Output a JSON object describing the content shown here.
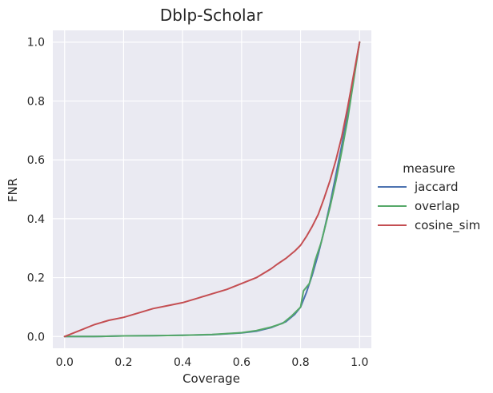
{
  "chart_data": {
    "type": "line",
    "title": "Dblp-Scholar",
    "xlabel": "Coverage",
    "ylabel": "FNR",
    "xlim": [
      -0.04,
      1.04
    ],
    "ylim": [
      -0.04,
      1.04
    ],
    "xticks": [
      "0.0",
      "0.2",
      "0.4",
      "0.6",
      "0.8",
      "1.0"
    ],
    "yticks": [
      "0.0",
      "0.2",
      "0.4",
      "0.6",
      "0.8",
      "1.0"
    ],
    "grid": true,
    "legend": {
      "title": "measure",
      "placement": "right-outside"
    },
    "colors": {
      "background": "#EAEAF2",
      "grid": "#FFFFFF"
    },
    "series": [
      {
        "name": "jaccard",
        "color": "#4C72B0",
        "x": [
          0.0,
          0.1,
          0.2,
          0.3,
          0.4,
          0.5,
          0.6,
          0.65,
          0.7,
          0.75,
          0.78,
          0.8,
          0.82,
          0.84,
          0.86,
          0.88,
          0.9,
          0.92,
          0.94,
          0.96,
          0.98,
          1.0
        ],
        "y": [
          0.0,
          0.0,
          0.002,
          0.003,
          0.004,
          0.006,
          0.012,
          0.018,
          0.03,
          0.05,
          0.075,
          0.1,
          0.15,
          0.21,
          0.28,
          0.36,
          0.45,
          0.55,
          0.65,
          0.76,
          0.88,
          1.0
        ]
      },
      {
        "name": "overlap",
        "color": "#55A868",
        "x": [
          0.0,
          0.1,
          0.2,
          0.3,
          0.4,
          0.5,
          0.6,
          0.65,
          0.7,
          0.74,
          0.77,
          0.8,
          0.81,
          0.83,
          0.85,
          0.87,
          0.9,
          0.92,
          0.94,
          0.96,
          0.98,
          1.0
        ],
        "y": [
          0.0,
          0.0,
          0.002,
          0.003,
          0.004,
          0.007,
          0.013,
          0.02,
          0.032,
          0.045,
          0.07,
          0.1,
          0.155,
          0.18,
          0.26,
          0.32,
          0.44,
          0.53,
          0.63,
          0.74,
          0.87,
          1.0
        ]
      },
      {
        "name": "cosine_sim",
        "color": "#C44E52",
        "x": [
          0.0,
          0.05,
          0.1,
          0.15,
          0.2,
          0.25,
          0.3,
          0.35,
          0.4,
          0.45,
          0.5,
          0.55,
          0.6,
          0.65,
          0.7,
          0.72,
          0.75,
          0.78,
          0.8,
          0.82,
          0.84,
          0.86,
          0.88,
          0.9,
          0.92,
          0.94,
          0.96,
          0.98,
          1.0
        ],
        "y": [
          0.0,
          0.02,
          0.04,
          0.055,
          0.065,
          0.08,
          0.095,
          0.105,
          0.115,
          0.13,
          0.145,
          0.16,
          0.18,
          0.2,
          0.23,
          0.245,
          0.265,
          0.29,
          0.31,
          0.34,
          0.375,
          0.415,
          0.47,
          0.53,
          0.6,
          0.68,
          0.78,
          0.89,
          1.0
        ]
      }
    ]
  }
}
